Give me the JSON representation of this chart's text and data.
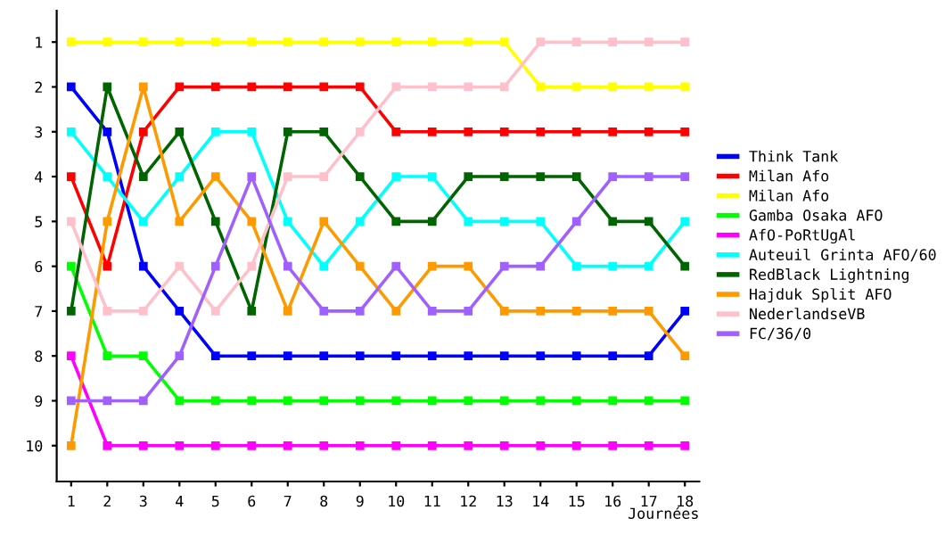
{
  "chart_data": {
    "type": "line",
    "xlabel": "Journées",
    "x": [
      1,
      2,
      3,
      4,
      5,
      6,
      7,
      8,
      9,
      10,
      11,
      12,
      13,
      14,
      15,
      16,
      17,
      18
    ],
    "xlim": [
      0.6,
      18.4
    ],
    "xticks": [
      1,
      2,
      3,
      4,
      5,
      6,
      7,
      8,
      9,
      10,
      11,
      12,
      13,
      14,
      15,
      16,
      17,
      18
    ],
    "ylim": [
      10.8,
      0.3
    ],
    "yticks": [
      1,
      2,
      3,
      4,
      5,
      6,
      7,
      8,
      9,
      10
    ],
    "grid": false,
    "legend": "right",
    "marker": "square",
    "line_style": "solid",
    "series": [
      {
        "name": "Think Tank",
        "color": "#0000ff",
        "values": [
          2,
          3,
          6,
          7,
          8,
          8,
          8,
          8,
          8,
          8,
          8,
          8,
          8,
          8,
          8,
          8,
          8,
          7
        ]
      },
      {
        "name": "Milan Afo",
        "color": "#ff0000",
        "values": [
          4,
          6,
          3,
          2,
          2,
          2,
          2,
          2,
          2,
          3,
          3,
          3,
          3,
          3,
          3,
          3,
          3,
          3
        ]
      },
      {
        "name": "Milan Afo",
        "color": "#ffff00",
        "values": [
          1,
          1,
          1,
          1,
          1,
          1,
          1,
          1,
          1,
          1,
          1,
          1,
          1,
          2,
          2,
          2,
          2,
          2
        ]
      },
      {
        "name": "Gamba Osaka AFO",
        "color": "#00ff00",
        "values": [
          6,
          8,
          8,
          9,
          9,
          9,
          9,
          9,
          9,
          9,
          9,
          9,
          9,
          9,
          9,
          9,
          9,
          9
        ]
      },
      {
        "name": "AfO-PoRtUgAl",
        "color": "#ff00ff",
        "values": [
          8,
          10,
          10,
          10,
          10,
          10,
          10,
          10,
          10,
          10,
          10,
          10,
          10,
          10,
          10,
          10,
          10,
          10
        ]
      },
      {
        "name": "Auteuil Grinta AFO/60",
        "color": "#00ffff",
        "values": [
          3,
          4,
          5,
          4,
          3,
          3,
          5,
          6,
          5,
          4,
          4,
          5,
          5,
          5,
          6,
          6,
          6,
          5
        ]
      },
      {
        "name": "RedBlack Lightning",
        "color": "#006400",
        "values": [
          7,
          2,
          4,
          3,
          5,
          7,
          3,
          3,
          4,
          5,
          5,
          4,
          4,
          4,
          4,
          5,
          5,
          6
        ]
      },
      {
        "name": "Hajduk Split AFO",
        "color": "#ff9900",
        "values": [
          10,
          5,
          2,
          5,
          4,
          5,
          7,
          5,
          6,
          7,
          6,
          6,
          7,
          7,
          7,
          7,
          7,
          8
        ]
      },
      {
        "name": "NederlandseVB",
        "color": "#ffc0cb",
        "values": [
          5,
          7,
          7,
          6,
          7,
          6,
          4,
          4,
          3,
          2,
          2,
          2,
          2,
          1,
          1,
          1,
          1,
          1
        ]
      },
      {
        "name": "FC/36/0",
        "color": "#a060ff",
        "values": [
          9,
          9,
          9,
          8,
          6,
          4,
          6,
          7,
          7,
          6,
          7,
          7,
          6,
          6,
          5,
          4,
          4,
          4
        ]
      }
    ]
  }
}
